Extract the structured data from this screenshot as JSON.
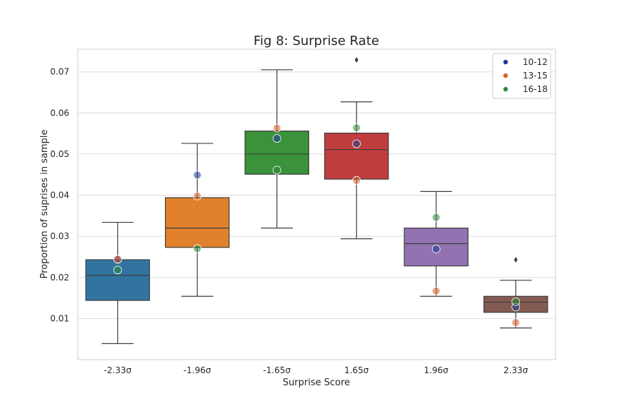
{
  "chart_data": {
    "type": "box",
    "title": "Fig 8: Surprise Rate",
    "xlabel": "Surprise Score",
    "ylabel": "Proportion of suprises in sample",
    "categories": [
      "-2.33σ",
      "-1.96σ",
      "-1.65σ",
      "1.65σ",
      "1.96σ",
      "2.33σ"
    ],
    "ylim": [
      0.0,
      0.0755
    ],
    "yticks": [
      0.01,
      0.02,
      0.03,
      0.04,
      0.05,
      0.06,
      0.07
    ],
    "ytick_labels": [
      "0.01",
      "0.02",
      "0.03",
      "0.04",
      "0.05",
      "0.06",
      "0.07"
    ],
    "grid": true,
    "legend_position": "top-right",
    "boxes": [
      {
        "category": "-2.33σ",
        "color": "#3274a1",
        "whisker_low": 0.0039,
        "q1": 0.0144,
        "median": 0.0205,
        "q3": 0.0243,
        "whisker_high": 0.0334,
        "outliers": []
      },
      {
        "category": "-1.96σ",
        "color": "#e1812c",
        "whisker_low": 0.0154,
        "q1": 0.0273,
        "median": 0.032,
        "q3": 0.0394,
        "whisker_high": 0.0526,
        "outliers": []
      },
      {
        "category": "-1.65σ",
        "color": "#3a923a",
        "whisker_low": 0.032,
        "q1": 0.0451,
        "median": 0.05,
        "q3": 0.0556,
        "whisker_high": 0.0705,
        "outliers": []
      },
      {
        "category": "1.65σ",
        "color": "#c03d3e",
        "whisker_low": 0.0294,
        "q1": 0.0439,
        "median": 0.0511,
        "q3": 0.0551,
        "whisker_high": 0.0627,
        "outliers": [
          0.0729
        ]
      },
      {
        "category": "1.96σ",
        "color": "#9372b2",
        "whisker_low": 0.0154,
        "q1": 0.0228,
        "median": 0.0282,
        "q3": 0.032,
        "whisker_high": 0.0409,
        "outliers": []
      },
      {
        "category": "2.33σ",
        "color": "#845b53",
        "whisker_low": 0.0077,
        "q1": 0.0115,
        "median": 0.014,
        "q3": 0.0154,
        "whisker_high": 0.0193,
        "outliers": [
          0.0243
        ]
      }
    ],
    "series": [
      {
        "name": "10-12",
        "color": "#1f3a93",
        "values": [
          0.0244,
          0.0449,
          0.0538,
          0.0525,
          0.0269,
          0.0128
        ]
      },
      {
        "name": "13-15",
        "color": "#d9622b",
        "values": [
          0.0244,
          0.0398,
          0.0563,
          0.0436,
          0.0167,
          0.009
        ]
      },
      {
        "name": "16-18",
        "color": "#2e8b3a",
        "values": [
          0.0218,
          0.027,
          0.0461,
          0.0564,
          0.0346,
          0.0141
        ]
      }
    ]
  }
}
